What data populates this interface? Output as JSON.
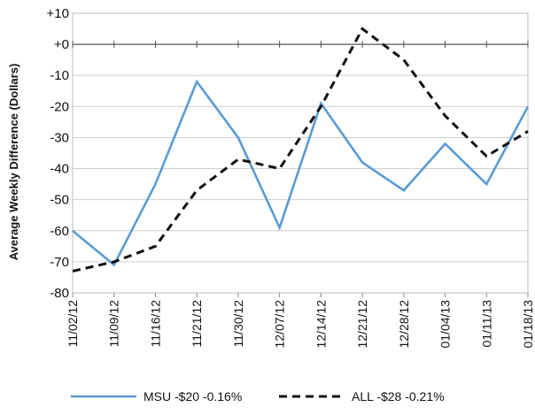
{
  "chart_data": {
    "type": "line",
    "ylabel": "Average Weekly Difference (Dollars)",
    "xlabel": "",
    "title": "",
    "categories": [
      "11/02/12",
      "11/09/12",
      "11/16/12",
      "11/21/12",
      "11/30/12",
      "12/07/12",
      "12/14/12",
      "12/21/12",
      "12/28/12",
      "01/04/13",
      "01/11/13",
      "01/18/13"
    ],
    "y_ticks": [
      10,
      0,
      -10,
      -20,
      -30,
      -40,
      -50,
      -60,
      -70,
      -80
    ],
    "y_tick_labels": [
      "+10",
      "+0",
      "-10",
      "-20",
      "-30",
      "-40",
      "-50",
      "-60",
      "-70",
      "-80"
    ],
    "ylim": [
      -80,
      10
    ],
    "grid": "horizontal",
    "legend_position": "bottom",
    "series": [
      {
        "name": "MSU -$20 -0.16%",
        "color": "#5b9bd5",
        "style": "solid",
        "values": [
          -60,
          -71,
          -45,
          -12,
          -30,
          -59,
          -19,
          -38,
          -47,
          -32,
          -45,
          -20
        ]
      },
      {
        "name": "ALL -$28 -0.21%",
        "color": "#111111",
        "style": "dashed",
        "values": [
          -73,
          -70,
          -65,
          -47,
          -37,
          -40,
          -20,
          5,
          -5,
          -23,
          -36,
          -28
        ]
      }
    ]
  }
}
